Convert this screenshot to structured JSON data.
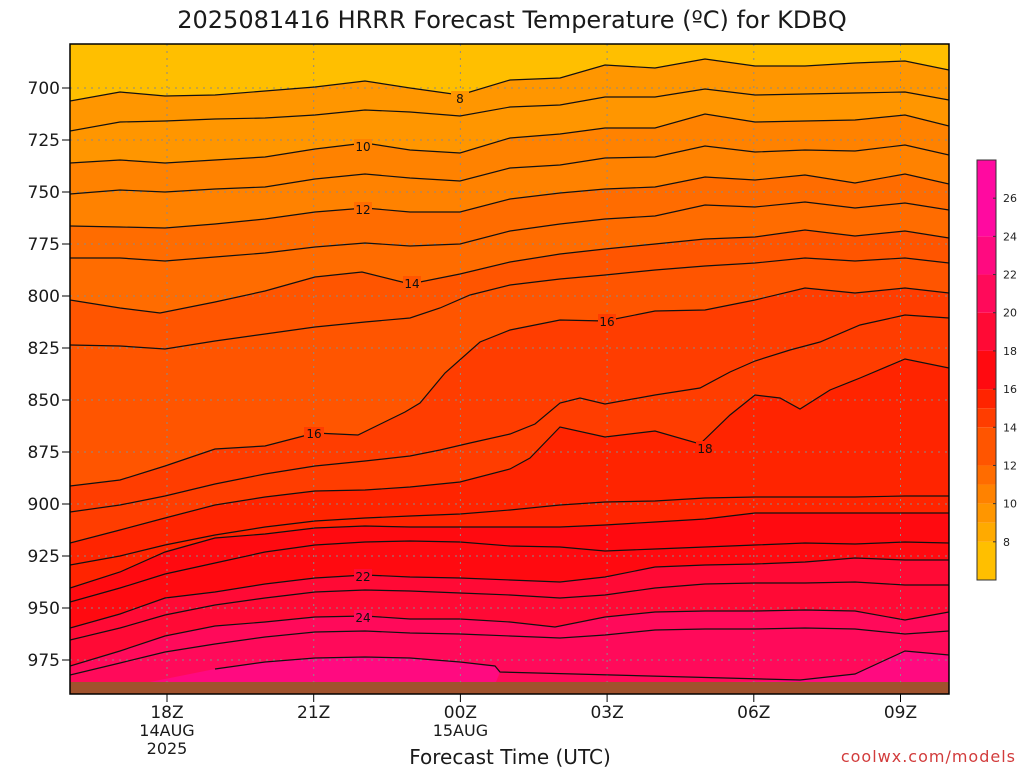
{
  "chart_data": {
    "type": "contour",
    "title": "2025081416 HRRR Forecast Temperature (ºC) for KDBQ",
    "xlabel": "Forecast Time (UTC)",
    "ylabel": "",
    "credit": "coolwx.com/models",
    "y_axis": {
      "inverted": true,
      "ylim": [
        990,
        682
      ],
      "ticks": [
        700,
        725,
        750,
        775,
        800,
        825,
        850,
        875,
        900,
        925,
        950,
        975
      ]
    },
    "x_axis": {
      "hours": [
        14,
        24
      ],
      "ticks": [
        {
          "hour": 18,
          "lines": [
            "18Z",
            "14AUG",
            "2025"
          ]
        },
        {
          "hour": 21,
          "lines": [
            "21Z"
          ]
        },
        {
          "hour": 24,
          "lines": [
            "00Z",
            "15AUG"
          ]
        },
        {
          "hour": 27,
          "lines": [
            "03Z"
          ]
        },
        {
          "hour": 30,
          "lines": [
            "06Z"
          ]
        },
        {
          "hour": 33,
          "lines": [
            "09Z"
          ]
        }
      ],
      "xlim": [
        15.1,
        33.95
      ]
    },
    "grid": true,
    "colorbar": {
      "ticks": [
        8,
        10,
        12,
        14,
        16,
        18,
        20,
        22,
        24,
        26
      ],
      "range": [
        6,
        28
      ],
      "colors": [
        "#ffbf00",
        "#ffaa00",
        "#ff9600",
        "#ff8200",
        "#ff6c00",
        "#ff5500",
        "#ff3d00",
        "#ff2400",
        "#ff0a10",
        "#ff0a35",
        "#ff0a5a",
        "#ff0a80",
        "#ff0aa0"
      ]
    },
    "contours": [
      {
        "level": 6,
        "label": ""
      },
      {
        "level": 8,
        "label": "8"
      },
      {
        "level": 9,
        "label": ""
      },
      {
        "level": 10,
        "label": "10"
      },
      {
        "level": 11,
        "label": ""
      },
      {
        "level": 12,
        "label": "12"
      },
      {
        "level": 13,
        "label": ""
      },
      {
        "level": 14,
        "label": "14"
      },
      {
        "level": 15,
        "label": ""
      },
      {
        "level": 16,
        "label": "16"
      },
      {
        "level": 17,
        "label": ""
      },
      {
        "level": 18,
        "label": "18"
      },
      {
        "level": 19,
        "label": ""
      },
      {
        "level": 20,
        "label": ""
      },
      {
        "level": 21,
        "label": ""
      },
      {
        "level": 22,
        "label": "22"
      },
      {
        "level": 23,
        "label": ""
      },
      {
        "level": 24,
        "label": "24"
      },
      {
        "level": 25,
        "label": ""
      },
      {
        "level": 26,
        "label": ""
      }
    ],
    "surface_color": "#a0522d"
  }
}
